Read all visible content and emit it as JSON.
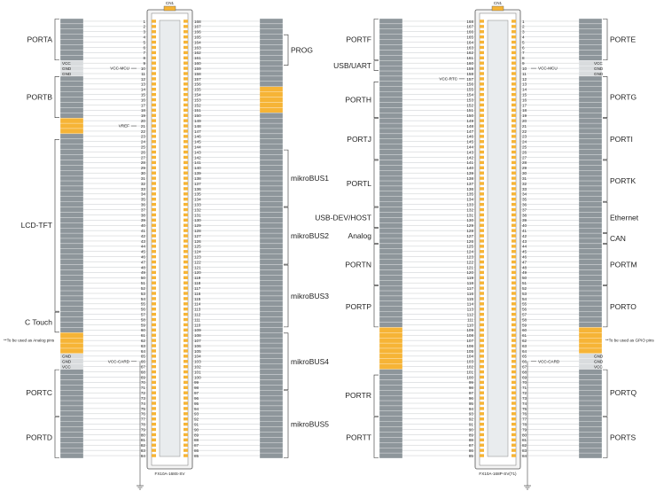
{
  "connectors": [
    {
      "header_label": "CN1",
      "footer_label": "FX10A-168S-SV",
      "left_groups": [
        {
          "name": "PORTA",
          "start": 1,
          "end": 8
        },
        {
          "name": "PORTB",
          "start": 12,
          "end": 19
        },
        {
          "name": "LCD-TFT",
          "start": 24,
          "end": 56
        },
        {
          "name": "C Touch",
          "start": 57,
          "end": 60
        },
        {
          "name": "PORTC",
          "start": 68,
          "end": 76
        },
        {
          "name": "PORTD",
          "start": 77,
          "end": 84
        }
      ],
      "right_groups": [
        {
          "name": "PROG",
          "start": 165,
          "end": 160
        },
        {
          "name": "mikroBUS1",
          "start": 143,
          "end": 133
        },
        {
          "name": "mikroBUS2",
          "start": 132,
          "end": 122
        },
        {
          "name": "mikroBUS3",
          "start": 121,
          "end": 110
        },
        {
          "name": "mikroBUS4",
          "start": 108,
          "end": 98
        },
        {
          "name": "mikroBUS5",
          "start": 97,
          "end": 85
        }
      ],
      "left_plain": [
        {
          "pin": 9,
          "text": "VCC"
        },
        {
          "pin": 10,
          "text": "GND"
        },
        {
          "pin": 11,
          "text": "GND"
        },
        {
          "pin": 65,
          "text": "GND"
        },
        {
          "pin": 66,
          "text": "GND"
        },
        {
          "pin": 67,
          "text": "VCC"
        }
      ],
      "annotations": [
        {
          "pin": 10,
          "side": "left",
          "text": "VCC-MCU"
        },
        {
          "pin": 21,
          "side": "left",
          "text": "VREF"
        },
        {
          "pin": 66,
          "side": "left",
          "text": "VCC-CARD"
        },
        {
          "pin": 62,
          "side": "outer-left",
          "text": "**To be used as Analog pins"
        }
      ],
      "left_highlight": [
        20,
        21,
        22,
        61,
        62,
        63,
        64
      ],
      "right_highlight": [
        155,
        154,
        153,
        152,
        151
      ]
    },
    {
      "header_label": "CN1",
      "footer_label": "FX10A-168P-SV(71)",
      "left_groups": [
        {
          "name": "PORTF",
          "start": 168,
          "end": 161
        },
        {
          "name": "USB/UART",
          "start": 160,
          "end": 159
        },
        {
          "name": "PORTH",
          "start": 156,
          "end": 150
        },
        {
          "name": "PORTJ",
          "start": 149,
          "end": 142
        },
        {
          "name": "PORTL",
          "start": 141,
          "end": 133
        },
        {
          "name": "USB-DEV/HOST",
          "start": 132,
          "end": 129
        },
        {
          "name": "Analog",
          "start": 128,
          "end": 126
        },
        {
          "name": "PORTN",
          "start": 125,
          "end": 118
        },
        {
          "name": "PORTP",
          "start": 117,
          "end": 110
        },
        {
          "name": "PORTR",
          "start": 100,
          "end": 93
        },
        {
          "name": "PORTT",
          "start": 92,
          "end": 85
        }
      ],
      "right_groups": [
        {
          "name": "PORTE",
          "start": 1,
          "end": 8
        },
        {
          "name": "PORTG",
          "start": 12,
          "end": 19
        },
        {
          "name": "PORTI",
          "start": 20,
          "end": 27
        },
        {
          "name": "PORTK",
          "start": 28,
          "end": 35
        },
        {
          "name": "Ethernet",
          "start": 36,
          "end": 41
        },
        {
          "name": "CAN",
          "start": 42,
          "end": 43
        },
        {
          "name": "PORTM",
          "start": 44,
          "end": 51
        },
        {
          "name": "PORTO",
          "start": 52,
          "end": 59
        },
        {
          "name": "PORTQ",
          "start": 68,
          "end": 76
        },
        {
          "name": "PORTS",
          "start": 77,
          "end": 84
        }
      ],
      "right_plain": [
        {
          "pin": 9,
          "text": "VCC"
        },
        {
          "pin": 10,
          "text": "GND"
        },
        {
          "pin": 11,
          "text": "GND"
        },
        {
          "pin": 65,
          "text": "GND"
        },
        {
          "pin": 66,
          "text": "GND"
        },
        {
          "pin": 67,
          "text": "VCC"
        }
      ],
      "annotations": [
        {
          "pin": 10,
          "side": "right",
          "text": "VCC-MCU"
        },
        {
          "pin": 157,
          "side": "left",
          "text": "VCC-RTC"
        },
        {
          "pin": 66,
          "side": "right",
          "text": "VCC-CARD"
        },
        {
          "pin": 62,
          "side": "outer-right",
          "text": "**To be used as GPIO pins"
        }
      ],
      "left_highlight": [
        109,
        108,
        107,
        106,
        105,
        104,
        103,
        102
      ],
      "right_highlight": [
        60,
        61,
        62,
        63,
        64
      ]
    }
  ]
}
